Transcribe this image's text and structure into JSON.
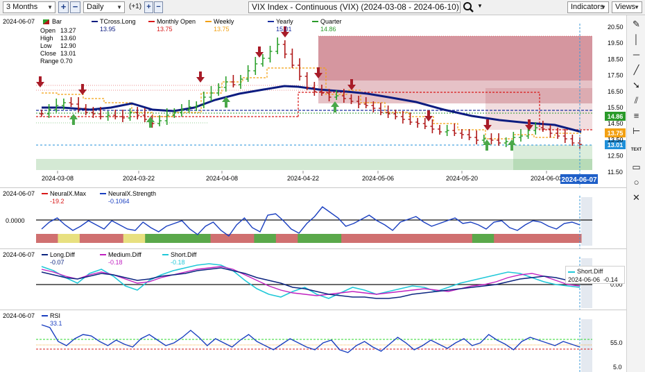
{
  "toolbar": {
    "range": "3 Months",
    "interval": "Daily",
    "offset": "(+1)",
    "symbol": "VIX Index - Continuous (VIX) (2024-03-08 - 2024-06-10)",
    "indicators": "Indicators",
    "views": "Views",
    "icons": [
      "plus-icon",
      "minus-icon",
      "search-icon",
      "chevron-down-icon"
    ]
  },
  "price_pane": {
    "date": "2024-06-07",
    "bar_label": "Bar",
    "ohlc": [
      {
        "label": "Open",
        "value": "13.27"
      },
      {
        "label": "High",
        "value": "13.60"
      },
      {
        "label": "Low",
        "value": "12.90"
      },
      {
        "label": "Close",
        "value": "13.01"
      },
      {
        "label": "Range",
        "value": "0.70"
      }
    ],
    "legend": [
      {
        "name": "TCross.Long",
        "value": "13.95",
        "color": "#0c1c80"
      },
      {
        "name": "Monthly Open",
        "value": "13.75",
        "color": "#d81818"
      },
      {
        "name": "Weekly",
        "value": "13.75",
        "color": "#f2a012"
      },
      {
        "name": "Yearly",
        "value": "15.01",
        "color": "#1a2fa0"
      },
      {
        "name": "Quarter",
        "value": "14.86",
        "color": "#2a9a2a"
      }
    ],
    "price_ticks": [
      "20.50",
      "19.50",
      "18.50",
      "17.50",
      "16.50",
      "15.50",
      "14.50",
      "13.50",
      "12.50",
      "11.50"
    ],
    "date_ticks": [
      "2024-03-08",
      "2024-03-22",
      "2024-04-08",
      "2024-04-22",
      "2024-05-06",
      "2024-05-20",
      "2024-06-03"
    ],
    "cursor_date": "2024-06-07",
    "price_flags": [
      {
        "value": "14.86",
        "color": "#2a9a2a"
      },
      {
        "value": "13.75",
        "color": "#f2a012"
      },
      {
        "value": "13.01",
        "color": "#1f8fd8"
      }
    ]
  },
  "neurax_pane": {
    "date": "2024-06-07",
    "legend": [
      {
        "name": "NeuralX.Max",
        "value": "-19.2",
        "color": "#d81818"
      },
      {
        "name": "NeuralX.Strength",
        "value": "-0.1064",
        "color": "#1a3fc0"
      }
    ],
    "tick": "0.0000"
  },
  "diff_pane": {
    "date": "2024-06-07",
    "legend": [
      {
        "name": "Long.Diff",
        "value": "-0.07",
        "color": "#0c2580"
      },
      {
        "name": "Medium.Diff",
        "value": "-0.18",
        "color": "#c020c0"
      },
      {
        "name": "Short.Diff",
        "value": "-0.18",
        "color": "#20c8d8"
      }
    ],
    "tick": "0.00",
    "tooltip": {
      "name": "Short.Diff",
      "date": "2024-06-06",
      "value": "-0.14"
    }
  },
  "rsi_pane": {
    "date": "2024-06-07",
    "legend": [
      {
        "name": "RSI",
        "value": "33.1",
        "color": "#1a3fc0"
      }
    ],
    "ticks": [
      "55.0",
      "5.0"
    ]
  },
  "side_tools": [
    "pencil-icon",
    "vertical-line-icon",
    "horizontal-line-icon",
    "diagonal-line-icon",
    "arrow-icon",
    "channel-icon",
    "fibonacci-icon",
    "measure-icon",
    "text-tool-icon",
    "rectangle-icon",
    "circle-icon",
    "close-icon"
  ],
  "colors": {
    "up": "#2aa02a",
    "down": "#b01818",
    "arrow_up": "#4aa84a",
    "arrow_down": "#a81c28",
    "resistance_zone": "#b24050",
    "support_zone": "#3a9a3a"
  }
}
